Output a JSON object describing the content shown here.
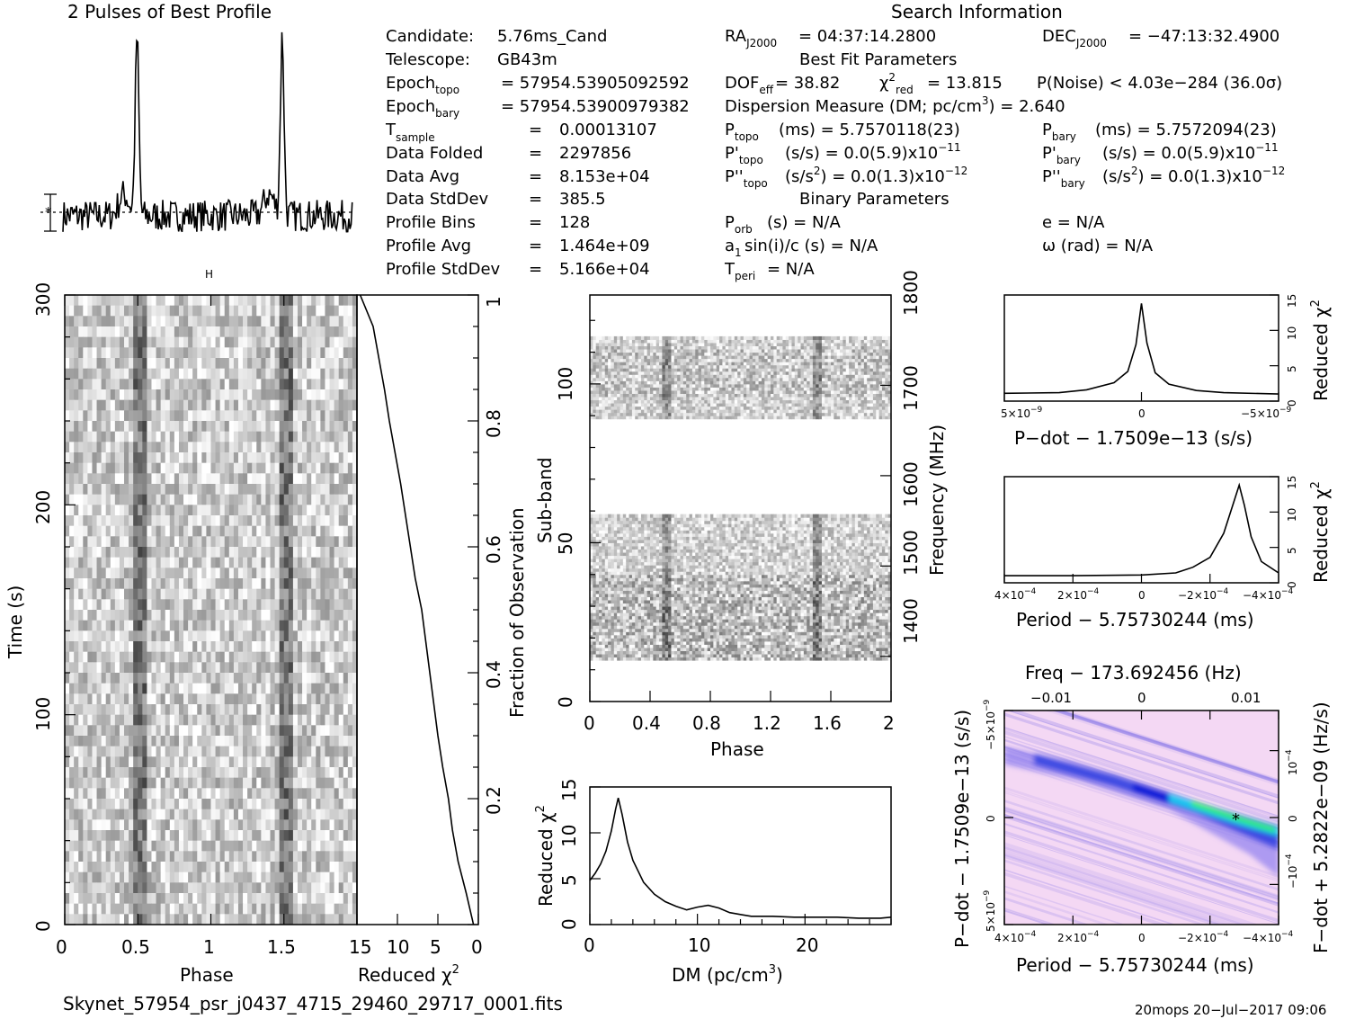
{
  "header": {
    "profile_title": "2 Pulses of Best Profile",
    "search_title": "Search Information",
    "best_fit_title": "Best Fit Parameters",
    "binary_title": "Binary Parameters"
  },
  "candidate_info": [
    {
      "label": "Candidate:",
      "value": "5.76ms_Cand"
    },
    {
      "label": "Telescope:",
      "value": "GB43m"
    },
    {
      "label": "Epoch",
      "label_sub": "topo",
      "value": "= 57954.53905092592"
    },
    {
      "label": "Epoch",
      "label_sub": "bary",
      "value": "= 57954.53900979382"
    },
    {
      "label": "T",
      "label_sub": "sample",
      "value": "0.00013107"
    },
    {
      "label": "Data Folded",
      "value": "2297856"
    },
    {
      "label": "Data Avg",
      "value": "8.153e+04"
    },
    {
      "label": "Data StdDev",
      "value": "385.5"
    },
    {
      "label": "Profile Bins",
      "value": "128"
    },
    {
      "label": "Profile Avg",
      "value": "1.464e+09"
    },
    {
      "label": "Profile StdDev",
      "value": "5.166e+04"
    }
  ],
  "search_info": {
    "ra": "= 04:37:14.2800",
    "dec": "= −47:13:32.4900",
    "dof": "= 38.82",
    "chi2": "= 13.815",
    "pnoise": "P(Noise) < 4.03e−284   (36.0σ)",
    "dm_line": "Dispersion Measure (DM; pc/cm",
    "dm_value": ") = 2.640",
    "ptopo": "(ms) =   5.7570118(23)",
    "pbary": "(ms) =   5.7572094(23)",
    "pdtopo": "(s/s) = 0.0(5.9)x10",
    "pdtopo_exp": "−11",
    "pdbary": "(s/s) = 0.0(5.9)x10",
    "pdbary_exp": "−11",
    "pddtopo": "(s/s",
    "pddtopo_tail": ") = 0.0(1.3)x10",
    "pddtopo_exp": "−12",
    "pddbary": "(s/s",
    "pddbary_tail": ") = 0.0(1.3)x10",
    "pddbary_exp": "−12",
    "porb": "(s) = N/A",
    "ecc": "e = N/A",
    "a1": "sin(i)/c (s) = N/A",
    "omega": "ω (rad) = N/A",
    "tperi": "= N/A"
  },
  "footer": {
    "filename": "Skynet_57954_psr_j0437_4715_29460_29717_0001.fits",
    "stamp": "20mops  20−Jul−2017  09:06"
  },
  "colors": {
    "ink": "#000000",
    "ppdot_low": "#f4d8f4",
    "ppdot_mid": "#0a1fd8",
    "ppdot_high": "#33ee66"
  },
  "chart_data": [
    {
      "id": "profile",
      "type": "line",
      "title": "2 Pulses of Best Profile",
      "x": "phase 0–2 (256 bins)",
      "peaks": [
        {
          "phase": 0.51,
          "height": 1.0
        },
        {
          "phase": 1.51,
          "height": 1.0
        }
      ],
      "baseline": 0.0,
      "error_bar": true
    },
    {
      "id": "time_phase",
      "type": "heatmap",
      "xlabel": "Phase",
      "ylabel": "Time (s)",
      "xlim": [
        0,
        2
      ],
      "ylim": [
        0,
        300
      ],
      "xticks": [
        "0",
        "0.5",
        "1",
        "1.5"
      ],
      "yticks": [
        "0",
        "100",
        "200",
        "300"
      ],
      "pulse_phases": [
        0.5,
        1.5
      ]
    },
    {
      "id": "time_chi2",
      "type": "line",
      "xlabel": "Reduced χ²",
      "ylabel": "Fraction of Observation",
      "xlim": [
        15,
        0
      ],
      "ylim": [
        0,
        1
      ],
      "xticks": [
        "15",
        "10",
        "5",
        "0"
      ],
      "yticks": [
        "0.2",
        "0.4",
        "0.6",
        "0.8",
        "1"
      ],
      "points": [
        [
          0.6,
          0.0
        ],
        [
          1.5,
          0.05
        ],
        [
          2.5,
          0.1
        ],
        [
          3.2,
          0.15
        ],
        [
          3.7,
          0.2
        ],
        [
          4.4,
          0.25
        ],
        [
          5.0,
          0.3
        ],
        [
          5.5,
          0.35
        ],
        [
          6.0,
          0.4
        ],
        [
          6.5,
          0.45
        ],
        [
          7.0,
          0.5
        ],
        [
          7.8,
          0.55
        ],
        [
          8.4,
          0.6
        ],
        [
          9.0,
          0.65
        ],
        [
          9.6,
          0.7
        ],
        [
          10.3,
          0.75
        ],
        [
          11.0,
          0.8
        ],
        [
          11.6,
          0.85
        ],
        [
          12.3,
          0.9
        ],
        [
          13.0,
          0.95
        ],
        [
          14.6,
          1.0
        ]
      ]
    },
    {
      "id": "subband_phase",
      "type": "heatmap",
      "xlabel": "Phase",
      "ylabel": "Sub-band",
      "y2label": "Frequency (MHz)",
      "xlim": [
        0,
        2
      ],
      "ylim": [
        0,
        128
      ],
      "xticks": [
        "0",
        "0.4",
        "0.8",
        "1.2",
        "1.6",
        "2"
      ],
      "yticks": [
        "0",
        "50",
        "100"
      ],
      "y2ticks": [
        "1400",
        "1500",
        "1600",
        "1700",
        "1800"
      ],
      "active_bands": [
        [
          13,
          59
        ],
        [
          89,
          115
        ]
      ]
    },
    {
      "id": "dm_chi2",
      "type": "line",
      "xlabel": "DM (pc/cm³)",
      "ylabel": "Reduced χ²",
      "xlim": [
        0,
        28
      ],
      "ylim": [
        0,
        15
      ],
      "xticks": [
        "0",
        "10",
        "20"
      ],
      "yticks": [
        "0",
        "5",
        "10",
        "15"
      ],
      "points": [
        [
          0,
          4.8
        ],
        [
          0.5,
          5.6
        ],
        [
          1,
          6.6
        ],
        [
          1.5,
          8.0
        ],
        [
          2,
          10.2
        ],
        [
          2.4,
          12.6
        ],
        [
          2.64,
          13.8
        ],
        [
          3,
          12.0
        ],
        [
          3.5,
          9.0
        ],
        [
          4,
          7.0
        ],
        [
          5,
          4.6
        ],
        [
          6,
          3.3
        ],
        [
          7,
          2.5
        ],
        [
          8,
          2.0
        ],
        [
          9,
          1.6
        ],
        [
          10,
          1.9
        ],
        [
          11,
          2.1
        ],
        [
          12,
          1.8
        ],
        [
          13,
          1.3
        ],
        [
          14,
          1.1
        ],
        [
          15,
          0.9
        ],
        [
          17,
          0.9
        ],
        [
          19,
          0.8
        ],
        [
          21,
          0.8
        ],
        [
          23,
          0.8
        ],
        [
          25,
          0.7
        ],
        [
          27,
          0.7
        ],
        [
          28,
          0.8
        ]
      ]
    },
    {
      "id": "pdot_chi2",
      "type": "line",
      "xlabel": "P−dot − 1.7509e−13 (s/s)",
      "ylabel": "Reduced χ²",
      "xlim": [
        5e-09,
        -5e-09
      ],
      "ylim": [
        0,
        15
      ],
      "xticks": [
        "5×10⁻⁹",
        "0",
        "−5×10⁻⁹"
      ],
      "yticks": [
        "0",
        "5",
        "10",
        "15"
      ],
      "points": [
        [
          5e-09,
          1.1
        ],
        [
          3e-09,
          1.2
        ],
        [
          2e-09,
          1.6
        ],
        [
          1e-09,
          2.6
        ],
        [
          5e-10,
          4.2
        ],
        [
          2e-10,
          8.0
        ],
        [
          0,
          13.8
        ],
        [
          -2e-10,
          8.2
        ],
        [
          -5e-10,
          4.0
        ],
        [
          -1e-09,
          2.4
        ],
        [
          -2e-09,
          1.5
        ],
        [
          -3e-09,
          1.2
        ],
        [
          -5e-09,
          1.0
        ]
      ]
    },
    {
      "id": "period_chi2",
      "type": "line",
      "xlabel": "Period − 5.75730244 (ms)",
      "ylabel": "Reduced χ²",
      "xlim": [
        0.0004,
        -0.0004
      ],
      "ylim": [
        0,
        15
      ],
      "xticks": [
        "4×10⁻⁴",
        "2×10⁻⁴",
        "0",
        "−2×10⁻⁴",
        "−4×10⁻⁴"
      ],
      "yticks": [
        "0",
        "5",
        "10",
        "15"
      ],
      "points": [
        [
          0.0004,
          1.0
        ],
        [
          0.0002,
          1.0
        ],
        [
          0,
          1.1
        ],
        [
          -0.0001,
          1.4
        ],
        [
          -0.00015,
          2.2
        ],
        [
          -0.0002,
          3.6
        ],
        [
          -0.00024,
          7.0
        ],
        [
          -0.00027,
          11.5
        ],
        [
          -0.000285,
          13.8
        ],
        [
          -0.0003,
          11.0
        ],
        [
          -0.00032,
          6.5
        ],
        [
          -0.00035,
          3.0
        ],
        [
          -0.0004,
          1.4
        ]
      ]
    },
    {
      "id": "ppdot_plane",
      "type": "heatmap",
      "title": "Freq − 173.692456 (Hz)",
      "xlabel": "Period − 5.75730244 (ms)",
      "ylabel": "P−dot − 1.7509e−13 (s/s)",
      "y2label": "F−dot + 5.2822e−09 (Hz/s)",
      "xlim": [
        0.0004,
        -0.0004
      ],
      "ylim": [
        5e-09,
        -5e-09
      ],
      "xticks": [
        "4×10⁻⁴",
        "2×10⁻⁴",
        "0",
        "−2×10⁻⁴",
        "−4×10⁻⁴"
      ],
      "x2ticks": [
        "−0.01",
        "0",
        "0.01"
      ],
      "yticks": [
        "5×10⁻⁹",
        "0",
        "−5×10⁻⁹"
      ],
      "y2ticks": [
        "−10⁻⁴",
        "0",
        "10⁻⁴"
      ],
      "best_fit": {
        "period": -0.000285,
        "pdot": 0
      }
    }
  ]
}
